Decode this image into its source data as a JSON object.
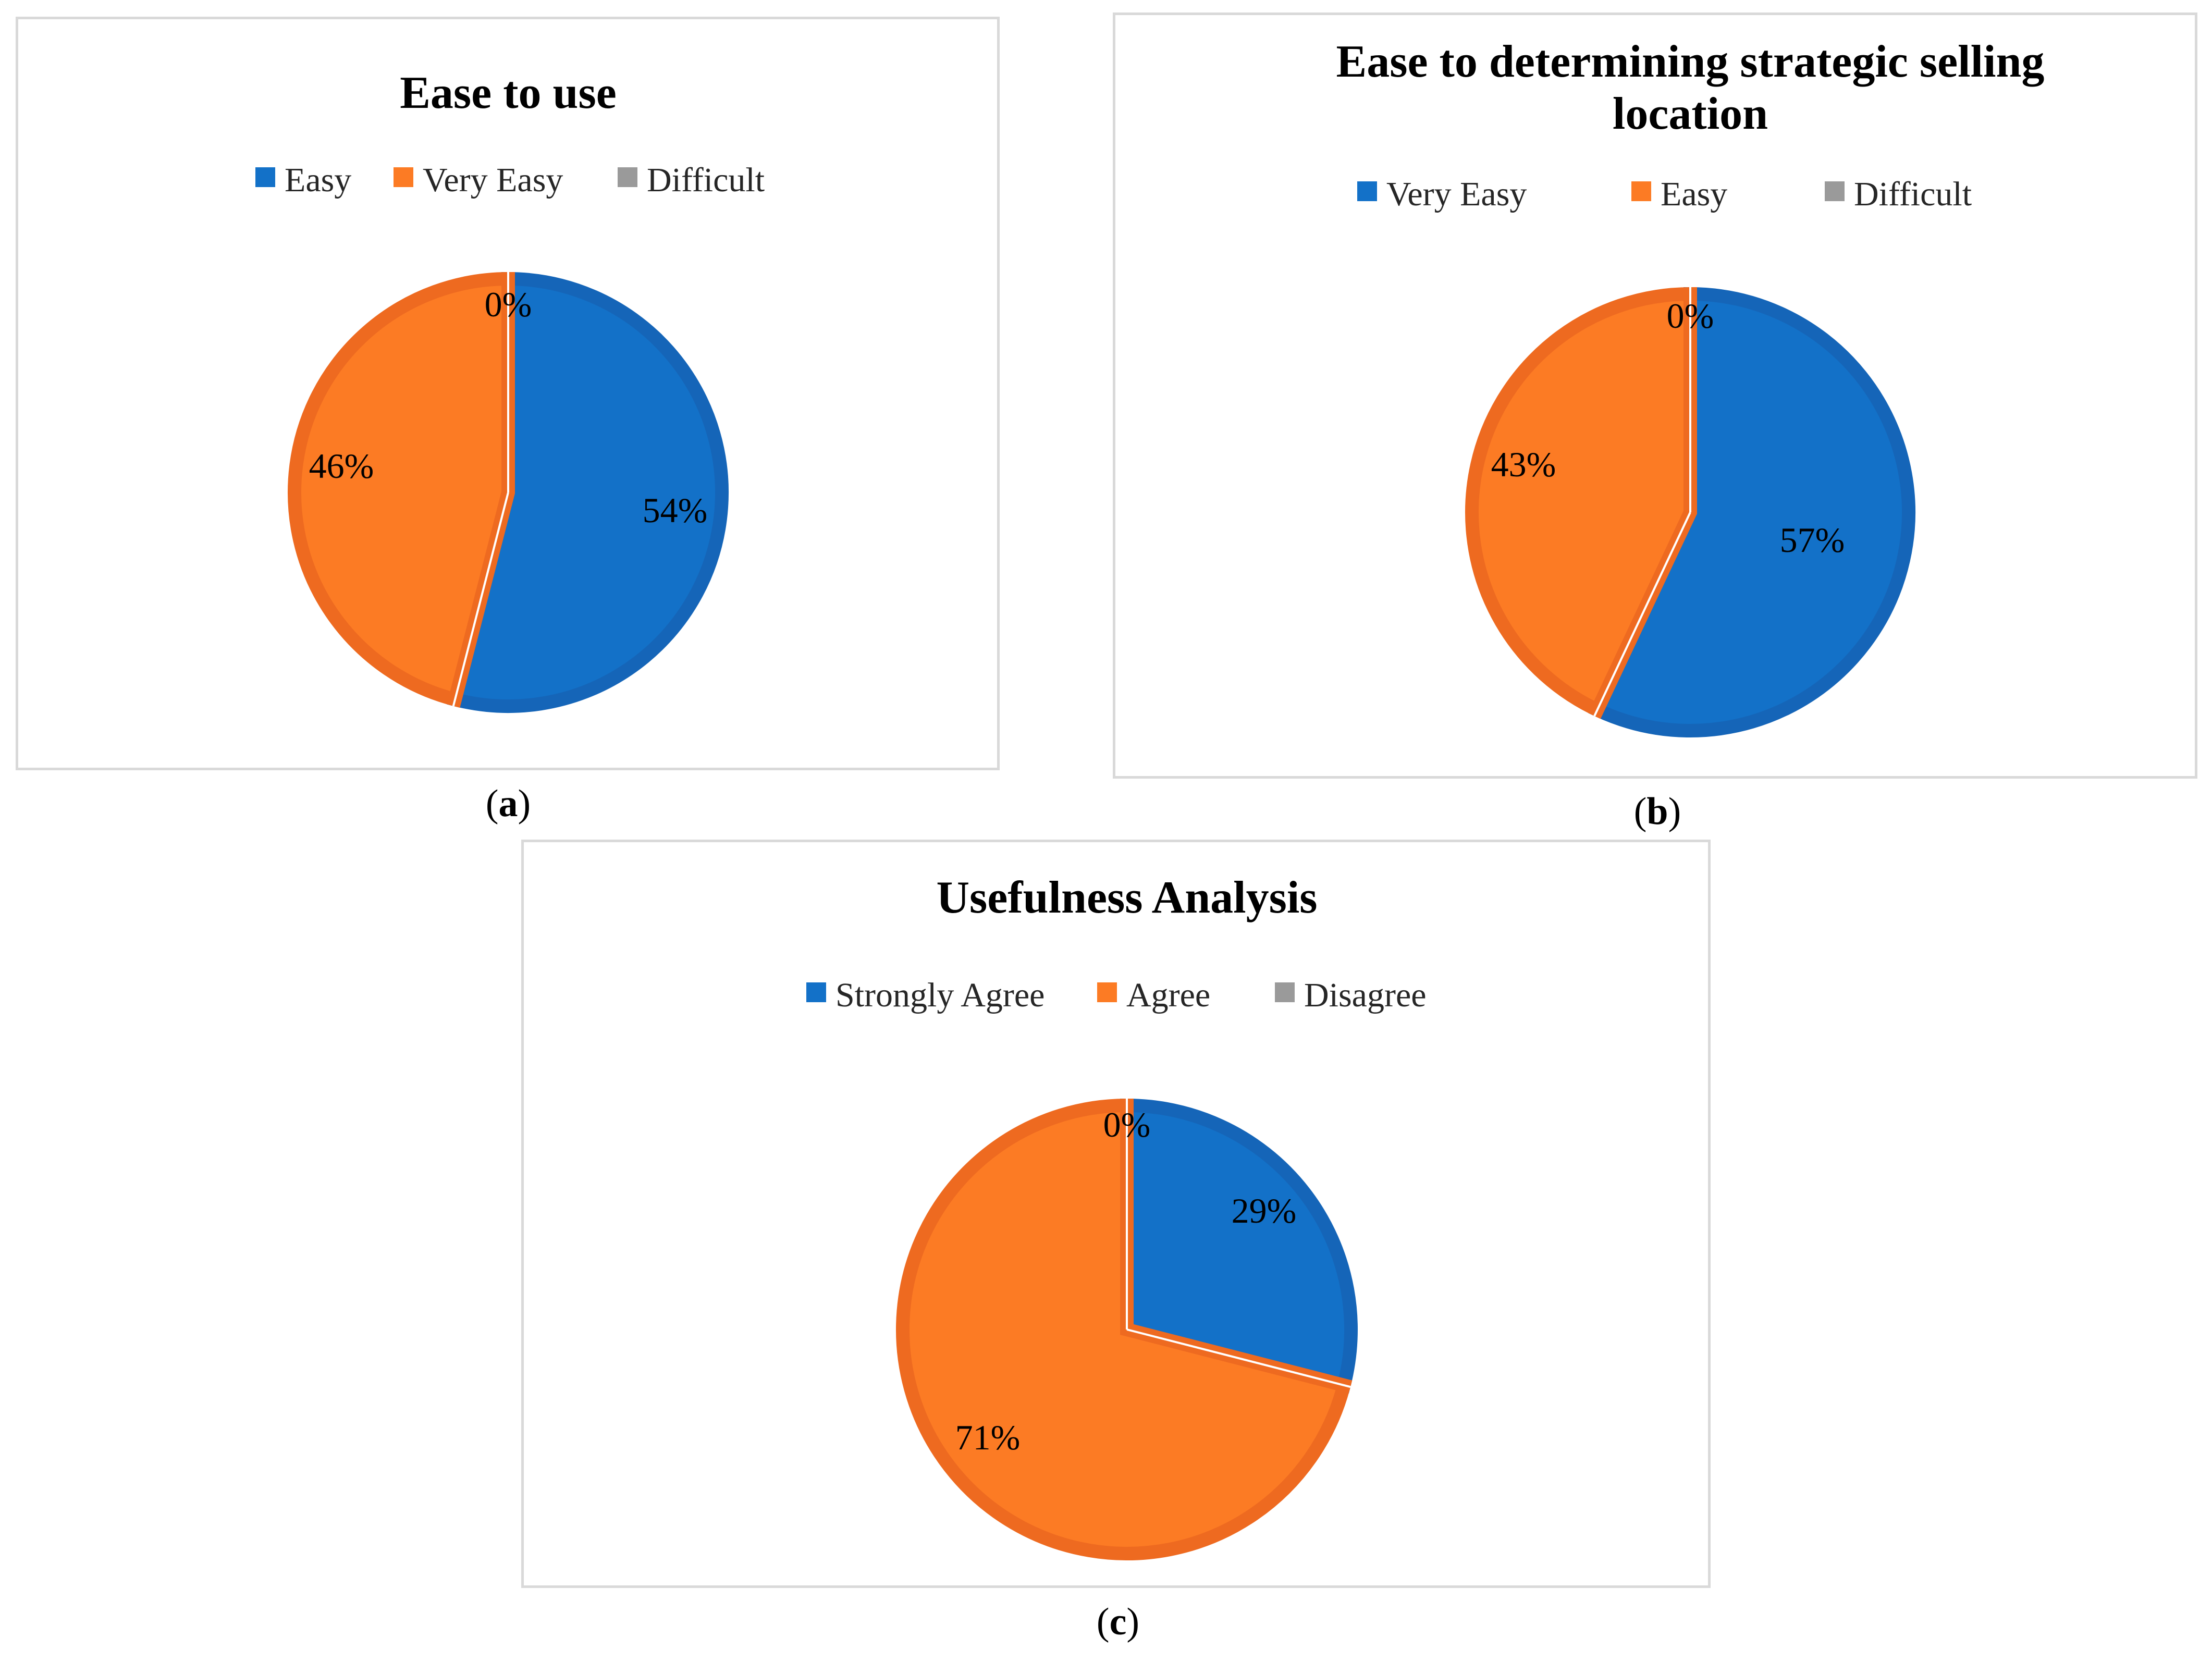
{
  "colors": {
    "blue": "#1371c8",
    "orange": "#fc7b24",
    "gray": "#9a9a9a",
    "blue_edge": "#1565b8",
    "orange_edge": "#ee6a20"
  },
  "chart_data": [
    {
      "id": "a",
      "type": "pie",
      "title_lines": [
        "Ease to use"
      ],
      "categories": [
        "Easy",
        "Very Easy",
        "Difficult"
      ],
      "values": [
        54,
        46,
        0
      ],
      "labels": [
        "54%",
        "46%",
        "0%"
      ],
      "legend_position": "top",
      "caption_prefix": "(",
      "caption_letter": "a",
      "caption_suffix": ")"
    },
    {
      "id": "b",
      "type": "pie",
      "title_lines": [
        "Ease to determining strategic selling",
        "location"
      ],
      "categories": [
        "Very Easy",
        "Easy",
        "Difficult"
      ],
      "values": [
        57,
        43,
        0
      ],
      "labels": [
        "57%",
        "43%",
        "0%"
      ],
      "legend_position": "top",
      "caption_prefix": "(",
      "caption_letter": "b",
      "caption_suffix": ")"
    },
    {
      "id": "c",
      "type": "pie",
      "title_lines": [
        "Usefulness Analysis"
      ],
      "categories": [
        "Strongly Agree",
        "Agree",
        "Disagree"
      ],
      "values": [
        29,
        71,
        0
      ],
      "labels": [
        "29%",
        "71%",
        "0%"
      ],
      "legend_position": "top",
      "caption_prefix": "(",
      "caption_letter": "c",
      "caption_suffix": ")"
    }
  ]
}
